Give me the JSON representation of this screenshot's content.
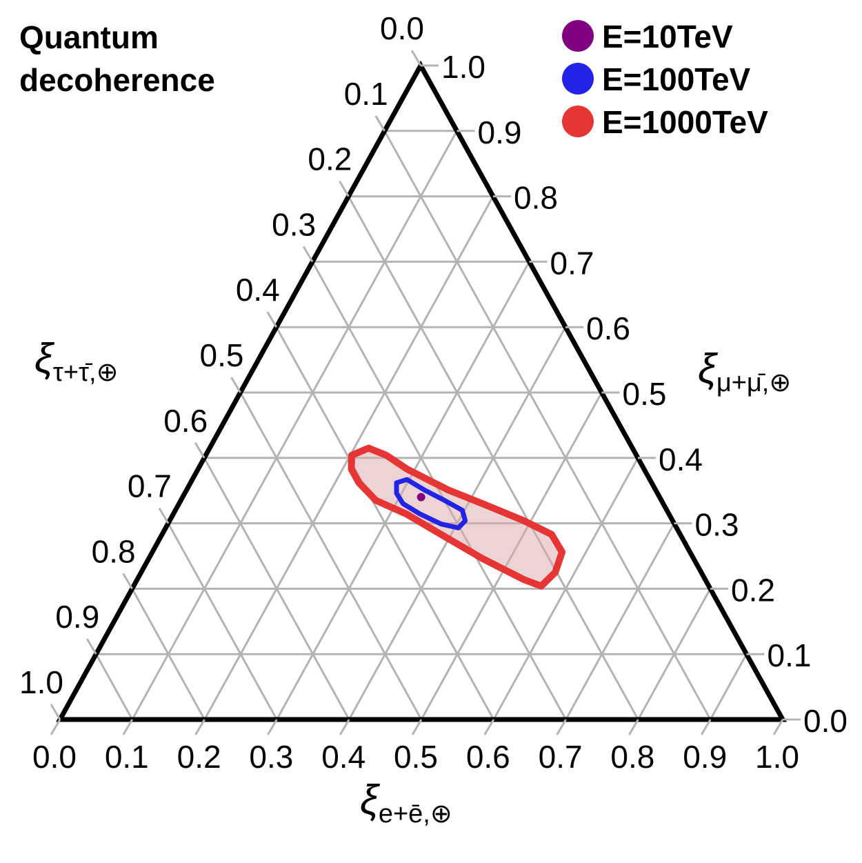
{
  "chart_data": {
    "type": "ternary",
    "title": [
      "Quantum",
      "decoherence"
    ],
    "grid": true,
    "grid_color": "#b3b3b3",
    "legend": "upper right",
    "axes": {
      "e": {
        "symbol": "ξ",
        "subscript": "e+ē,⊕",
        "ticks": [
          {
            "value": 0,
            "label": "0.0"
          },
          {
            "value": 0.1,
            "label": "0.1"
          },
          {
            "value": 0.2,
            "label": "0.2"
          },
          {
            "value": 0.3,
            "label": "0.3"
          },
          {
            "value": 0.4,
            "label": "0.4"
          },
          {
            "value": 0.5,
            "label": "0.5"
          },
          {
            "value": 0.6,
            "label": "0.6"
          },
          {
            "value": 0.7,
            "label": "0.7"
          },
          {
            "value": 0.8,
            "label": "0.8"
          },
          {
            "value": 0.9,
            "label": "0.9"
          },
          {
            "value": 1,
            "label": "1.0"
          }
        ]
      },
      "mu": {
        "symbol": "ξ",
        "subscript": "μ+μ̄,⊕",
        "ticks": [
          {
            "value": 0,
            "label": "0.0"
          },
          {
            "value": 0.1,
            "label": "0.1"
          },
          {
            "value": 0.2,
            "label": "0.2"
          },
          {
            "value": 0.3,
            "label": "0.3"
          },
          {
            "value": 0.4,
            "label": "0.4"
          },
          {
            "value": 0.5,
            "label": "0.5"
          },
          {
            "value": 0.6,
            "label": "0.6"
          },
          {
            "value": 0.7,
            "label": "0.7"
          },
          {
            "value": 0.8,
            "label": "0.8"
          },
          {
            "value": 0.9,
            "label": "0.9"
          },
          {
            "value": 1,
            "label": "1.0"
          }
        ]
      },
      "tau": {
        "symbol": "ξ",
        "subscript": "τ+τ̄,⊕",
        "ticks": [
          {
            "value": 0,
            "label": "0.0"
          },
          {
            "value": 0.1,
            "label": "0.1"
          },
          {
            "value": 0.2,
            "label": "0.2"
          },
          {
            "value": 0.3,
            "label": "0.3"
          },
          {
            "value": 0.4,
            "label": "0.4"
          },
          {
            "value": 0.5,
            "label": "0.5"
          },
          {
            "value": 0.6,
            "label": "0.6"
          },
          {
            "value": 0.7,
            "label": "0.7"
          },
          {
            "value": 0.8,
            "label": "0.8"
          },
          {
            "value": 0.9,
            "label": "0.9"
          },
          {
            "value": 1,
            "label": "1.0"
          }
        ]
      }
    },
    "series": [
      {
        "name": "E=1000TeV",
        "color": "#e53535",
        "fill": "#d9a9a9",
        "kind": "contour",
        "e": [
          0.202,
          0.22,
          0.25,
          0.289,
          0.362,
          0.42,
          0.49,
          0.539,
          0.567,
          0.573,
          0.564,
          0.535,
          0.462,
          0.386,
          0.323,
          0.27,
          0.233,
          0.212
        ],
        "mu": [
          0.404,
          0.415,
          0.404,
          0.383,
          0.351,
          0.33,
          0.304,
          0.283,
          0.256,
          0.225,
          0.204,
          0.214,
          0.246,
          0.283,
          0.314,
          0.335,
          0.362,
          0.383
        ]
      },
      {
        "name": "E=100TeV",
        "color": "#2323e6",
        "kind": "contour",
        "e": [
          0.285,
          0.297,
          0.329,
          0.365,
          0.397,
          0.409,
          0.405,
          0.378,
          0.342,
          0.31,
          0.293
        ],
        "mu": [
          0.362,
          0.367,
          0.351,
          0.335,
          0.32,
          0.304,
          0.293,
          0.299,
          0.314,
          0.33,
          0.346
        ]
      },
      {
        "name": "E=10TeV",
        "color": "#800080",
        "kind": "point",
        "e": [
          0.33
        ],
        "mu": [
          0.34
        ]
      }
    ]
  }
}
